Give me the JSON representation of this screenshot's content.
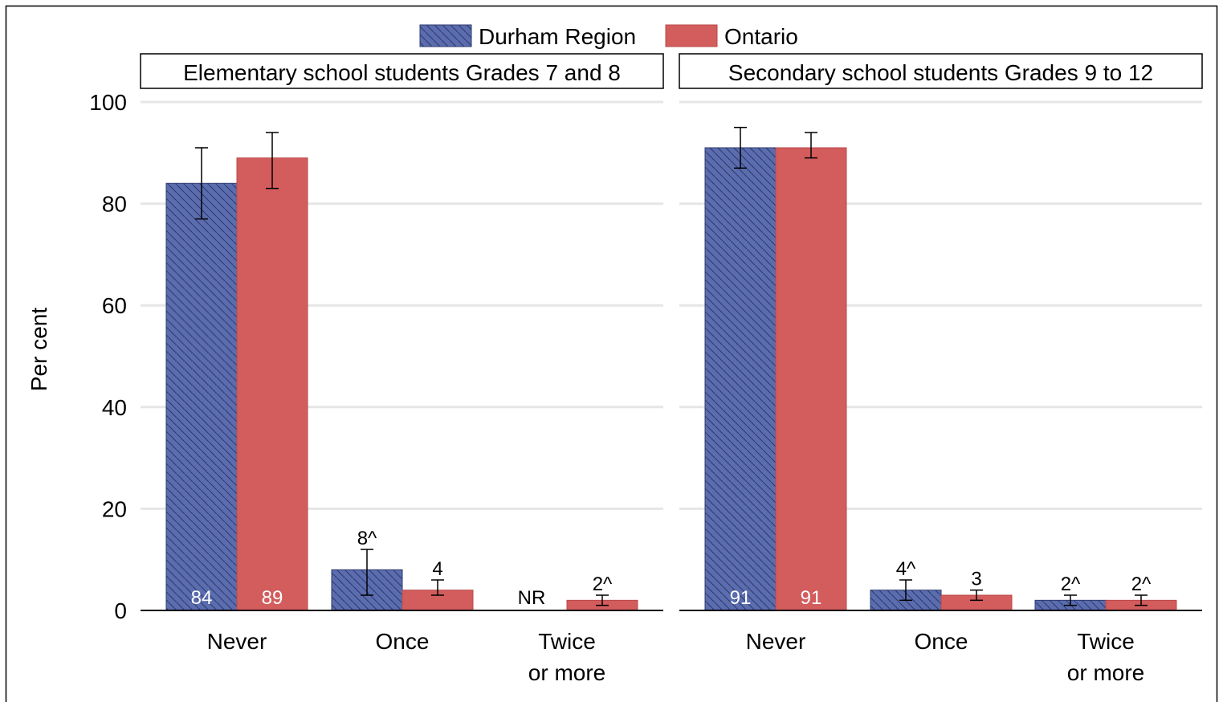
{
  "legend": {
    "placement": "top-center",
    "items": [
      {
        "label": "Durham Region",
        "color": "#5B6DAF",
        "pattern": "diagonal-hatch"
      },
      {
        "label": "Ontario",
        "color": "#D35C5C",
        "pattern": "solid"
      }
    ]
  },
  "chart_data": {
    "type": "bar",
    "ylabel": "Per cent",
    "ylim": [
      0,
      100
    ],
    "yticks": [
      0,
      20,
      40,
      60,
      80,
      100
    ],
    "grid": true,
    "categories": [
      [
        "Never"
      ],
      [
        "Once"
      ],
      [
        "Twice",
        "or more"
      ]
    ],
    "panels": [
      {
        "title": "Elementary school students Grades 7 and 8",
        "series": [
          {
            "name": "Durham Region",
            "values": [
              84,
              8,
              null
            ],
            "error_low": [
              77,
              3,
              null
            ],
            "error_high": [
              91,
              12,
              null
            ],
            "labels": [
              "84",
              "8^",
              "NR"
            ]
          },
          {
            "name": "Ontario",
            "values": [
              89,
              4,
              2
            ],
            "error_low": [
              83,
              3,
              1
            ],
            "error_high": [
              94,
              6,
              3
            ],
            "labels": [
              "89",
              "4",
              "2^"
            ]
          }
        ]
      },
      {
        "title": "Secondary school students Grades 9 to 12",
        "series": [
          {
            "name": "Durham Region",
            "values": [
              91,
              4,
              2
            ],
            "error_low": [
              87,
              2,
              1
            ],
            "error_high": [
              95,
              6,
              3
            ],
            "labels": [
              "91",
              "4^",
              "2^"
            ]
          },
          {
            "name": "Ontario",
            "values": [
              91,
              3,
              2
            ],
            "error_low": [
              89,
              2,
              1
            ],
            "error_high": [
              94,
              4,
              3
            ],
            "labels": [
              "91",
              "3",
              "2^"
            ]
          }
        ]
      }
    ]
  }
}
